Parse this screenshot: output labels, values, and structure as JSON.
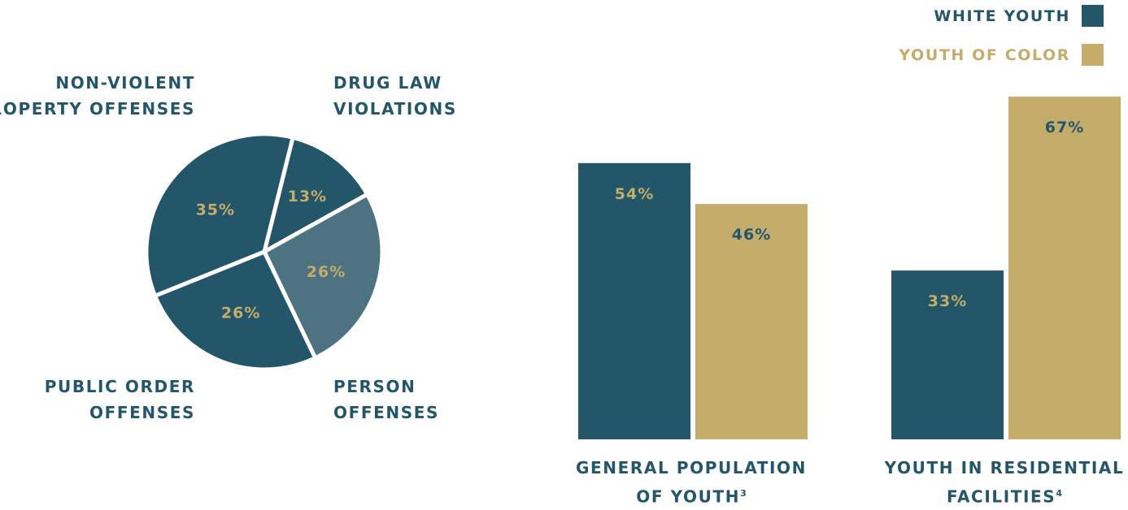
{
  "colors": {
    "navy": "#24566a",
    "slate": "#4d7282",
    "gold": "#c4ad6a",
    "white": "#ffffff"
  },
  "legend": {
    "white_youth": "WHITE YOUTH",
    "youth_of_color": "YOUTH OF COLOR"
  },
  "pie_labels": {
    "nonviolent_line1": "NON-VIOLENT",
    "nonviolent_line2": "PROPERTY OFFENSES",
    "drug_line1": "DRUG LAW",
    "drug_line2": "VIOLATIONS",
    "public_line1": "PUBLIC ORDER",
    "public_line2": "OFFENSES",
    "person_line1": "PERSON",
    "person_line2": "OFFENSES"
  },
  "bar_labels": {
    "general_line1": "GENERAL POPULATION",
    "general_line2": "OF YOUTH",
    "general_sup": "3",
    "residential_line1": "YOUTH IN RESIDENTIAL",
    "residential_line2": "FACILITIES",
    "residential_sup": "4"
  },
  "chart_data": [
    {
      "type": "pie",
      "slices": [
        {
          "name": "DRUG LAW VIOLATIONS",
          "value": 13,
          "label": "13%"
        },
        {
          "name": "PERSON OFFENSES",
          "value": 26,
          "label": "26%"
        },
        {
          "name": "PUBLIC ORDER OFFENSES",
          "value": 26,
          "label": "26%"
        },
        {
          "name": "NON-VIOLENT PROPERTY OFFENSES",
          "value": 35,
          "label": "35%"
        }
      ]
    },
    {
      "type": "bar",
      "categories": [
        "GENERAL POPULATION OF YOUTH",
        "YOUTH IN RESIDENTIAL FACILITIES"
      ],
      "series": [
        {
          "name": "WHITE YOUTH",
          "values": [
            54,
            33
          ],
          "labels": [
            "54%",
            "33%"
          ]
        },
        {
          "name": "YOUTH OF COLOR",
          "values": [
            46,
            67
          ],
          "labels": [
            "46%",
            "67%"
          ]
        }
      ],
      "ylim": [
        0,
        100
      ],
      "legend": "top-right",
      "grid": false
    }
  ]
}
